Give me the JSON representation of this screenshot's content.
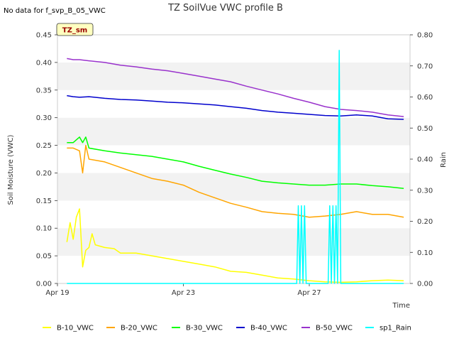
{
  "header": {
    "nodata_text": "No data for f_svp_B_05_VWC",
    "badge_text": "TZ_sm"
  },
  "chart_data": {
    "type": "line",
    "title": "TZ SoilVue VWC profile B",
    "xlabel": "Time",
    "ylabel": "Soil Moisture (VWC)",
    "y2label": "Rain",
    "x_ticks": [
      "Apr 19",
      "Apr 23",
      "Apr 27"
    ],
    "x_tick_days": [
      0,
      4,
      8
    ],
    "xlim": [
      0,
      11.2
    ],
    "ylim": [
      0,
      0.45
    ],
    "y_ticks": [
      "0.00",
      "0.05",
      "0.10",
      "0.15",
      "0.20",
      "0.25",
      "0.30",
      "0.35",
      "0.40",
      "0.45"
    ],
    "y2lim": [
      0,
      0.8
    ],
    "y2_ticks": [
      "0.00",
      "0.10",
      "0.20",
      "0.30",
      "0.40",
      "0.50",
      "0.60",
      "0.70",
      "0.80"
    ],
    "grid": "horizontal bands",
    "legend_position": "bottom",
    "series": [
      {
        "name": "B-10_VWC",
        "color": "#ffff00",
        "axis": "left",
        "points": [
          [
            0.3,
            0.075
          ],
          [
            0.4,
            0.11
          ],
          [
            0.5,
            0.08
          ],
          [
            0.6,
            0.12
          ],
          [
            0.7,
            0.135
          ],
          [
            0.8,
            0.03
          ],
          [
            0.9,
            0.06
          ],
          [
            1.0,
            0.065
          ],
          [
            1.1,
            0.09
          ],
          [
            1.2,
            0.07
          ],
          [
            1.5,
            0.065
          ],
          [
            1.8,
            0.063
          ],
          [
            2.0,
            0.055
          ],
          [
            2.5,
            0.055
          ],
          [
            3.0,
            0.05
          ],
          [
            3.5,
            0.045
          ],
          [
            4.0,
            0.04
          ],
          [
            4.5,
            0.035
          ],
          [
            5.0,
            0.03
          ],
          [
            5.5,
            0.022
          ],
          [
            6.0,
            0.02
          ],
          [
            6.5,
            0.015
          ],
          [
            7.0,
            0.01
          ],
          [
            7.5,
            0.008
          ],
          [
            8.0,
            0.005
          ],
          [
            8.5,
            0.003
          ],
          [
            9.0,
            0.002
          ],
          [
            9.5,
            0.003
          ],
          [
            10.0,
            0.005
          ],
          [
            10.5,
            0.006
          ],
          [
            11.0,
            0.005
          ]
        ]
      },
      {
        "name": "B-20_VWC",
        "color": "#ffa500",
        "axis": "left",
        "points": [
          [
            0.3,
            0.245
          ],
          [
            0.5,
            0.245
          ],
          [
            0.7,
            0.24
          ],
          [
            0.8,
            0.2
          ],
          [
            0.9,
            0.25
          ],
          [
            1.0,
            0.225
          ],
          [
            1.5,
            0.22
          ],
          [
            2.0,
            0.21
          ],
          [
            2.5,
            0.2
          ],
          [
            3.0,
            0.19
          ],
          [
            3.5,
            0.185
          ],
          [
            4.0,
            0.178
          ],
          [
            4.5,
            0.165
          ],
          [
            5.0,
            0.155
          ],
          [
            5.5,
            0.145
          ],
          [
            6.0,
            0.138
          ],
          [
            6.5,
            0.13
          ],
          [
            7.0,
            0.127
          ],
          [
            7.5,
            0.125
          ],
          [
            8.0,
            0.12
          ],
          [
            8.5,
            0.122
          ],
          [
            9.0,
            0.125
          ],
          [
            9.5,
            0.13
          ],
          [
            10.0,
            0.125
          ],
          [
            10.5,
            0.125
          ],
          [
            11.0,
            0.12
          ]
        ]
      },
      {
        "name": "B-30_VWC",
        "color": "#00ff00",
        "axis": "left",
        "points": [
          [
            0.3,
            0.255
          ],
          [
            0.5,
            0.255
          ],
          [
            0.7,
            0.265
          ],
          [
            0.8,
            0.255
          ],
          [
            0.9,
            0.265
          ],
          [
            1.0,
            0.245
          ],
          [
            1.5,
            0.24
          ],
          [
            2.0,
            0.236
          ],
          [
            2.5,
            0.233
          ],
          [
            3.0,
            0.23
          ],
          [
            3.5,
            0.225
          ],
          [
            4.0,
            0.22
          ],
          [
            4.5,
            0.212
          ],
          [
            5.0,
            0.205
          ],
          [
            5.5,
            0.198
          ],
          [
            6.0,
            0.192
          ],
          [
            6.5,
            0.185
          ],
          [
            7.0,
            0.182
          ],
          [
            7.5,
            0.18
          ],
          [
            8.0,
            0.178
          ],
          [
            8.5,
            0.178
          ],
          [
            9.0,
            0.18
          ],
          [
            9.5,
            0.18
          ],
          [
            10.0,
            0.177
          ],
          [
            10.5,
            0.175
          ],
          [
            11.0,
            0.172
          ]
        ]
      },
      {
        "name": "B-40_VWC",
        "color": "#0000cd",
        "axis": "left",
        "points": [
          [
            0.3,
            0.34
          ],
          [
            0.5,
            0.338
          ],
          [
            0.7,
            0.337
          ],
          [
            1.0,
            0.338
          ],
          [
            1.5,
            0.335
          ],
          [
            2.0,
            0.333
          ],
          [
            2.5,
            0.332
          ],
          [
            3.0,
            0.33
          ],
          [
            3.5,
            0.328
          ],
          [
            4.0,
            0.327
          ],
          [
            4.5,
            0.325
          ],
          [
            5.0,
            0.323
          ],
          [
            5.5,
            0.32
          ],
          [
            6.0,
            0.317
          ],
          [
            6.5,
            0.313
          ],
          [
            7.0,
            0.31
          ],
          [
            7.5,
            0.308
          ],
          [
            8.0,
            0.306
          ],
          [
            8.5,
            0.304
          ],
          [
            9.0,
            0.303
          ],
          [
            9.5,
            0.305
          ],
          [
            10.0,
            0.303
          ],
          [
            10.5,
            0.298
          ],
          [
            11.0,
            0.297
          ]
        ]
      },
      {
        "name": "B-50_VWC",
        "color": "#9932cc",
        "axis": "left",
        "points": [
          [
            0.3,
            0.407
          ],
          [
            0.5,
            0.405
          ],
          [
            0.7,
            0.405
          ],
          [
            1.0,
            0.403
          ],
          [
            1.5,
            0.4
          ],
          [
            2.0,
            0.395
          ],
          [
            2.5,
            0.392
          ],
          [
            3.0,
            0.388
          ],
          [
            3.5,
            0.385
          ],
          [
            4.0,
            0.38
          ],
          [
            4.5,
            0.375
          ],
          [
            5.0,
            0.37
          ],
          [
            5.5,
            0.365
          ],
          [
            6.0,
            0.357
          ],
          [
            6.5,
            0.35
          ],
          [
            7.0,
            0.343
          ],
          [
            7.5,
            0.335
          ],
          [
            8.0,
            0.328
          ],
          [
            8.5,
            0.32
          ],
          [
            9.0,
            0.315
          ],
          [
            9.5,
            0.313
          ],
          [
            10.0,
            0.31
          ],
          [
            10.5,
            0.305
          ],
          [
            11.0,
            0.302
          ]
        ]
      },
      {
        "name": "sp1_Rain",
        "color": "#00ffff",
        "axis": "right",
        "points": [
          [
            0.3,
            0
          ],
          [
            7.6,
            0
          ],
          [
            7.65,
            0.25
          ],
          [
            7.7,
            0
          ],
          [
            7.75,
            0.25
          ],
          [
            7.8,
            0
          ],
          [
            7.85,
            0.25
          ],
          [
            7.9,
            0
          ],
          [
            8.6,
            0
          ],
          [
            8.65,
            0.25
          ],
          [
            8.7,
            0
          ],
          [
            8.75,
            0.25
          ],
          [
            8.8,
            0
          ],
          [
            8.85,
            0.25
          ],
          [
            8.9,
            0
          ],
          [
            8.95,
            0.75
          ],
          [
            9.0,
            0
          ],
          [
            11.0,
            0
          ]
        ]
      }
    ]
  }
}
